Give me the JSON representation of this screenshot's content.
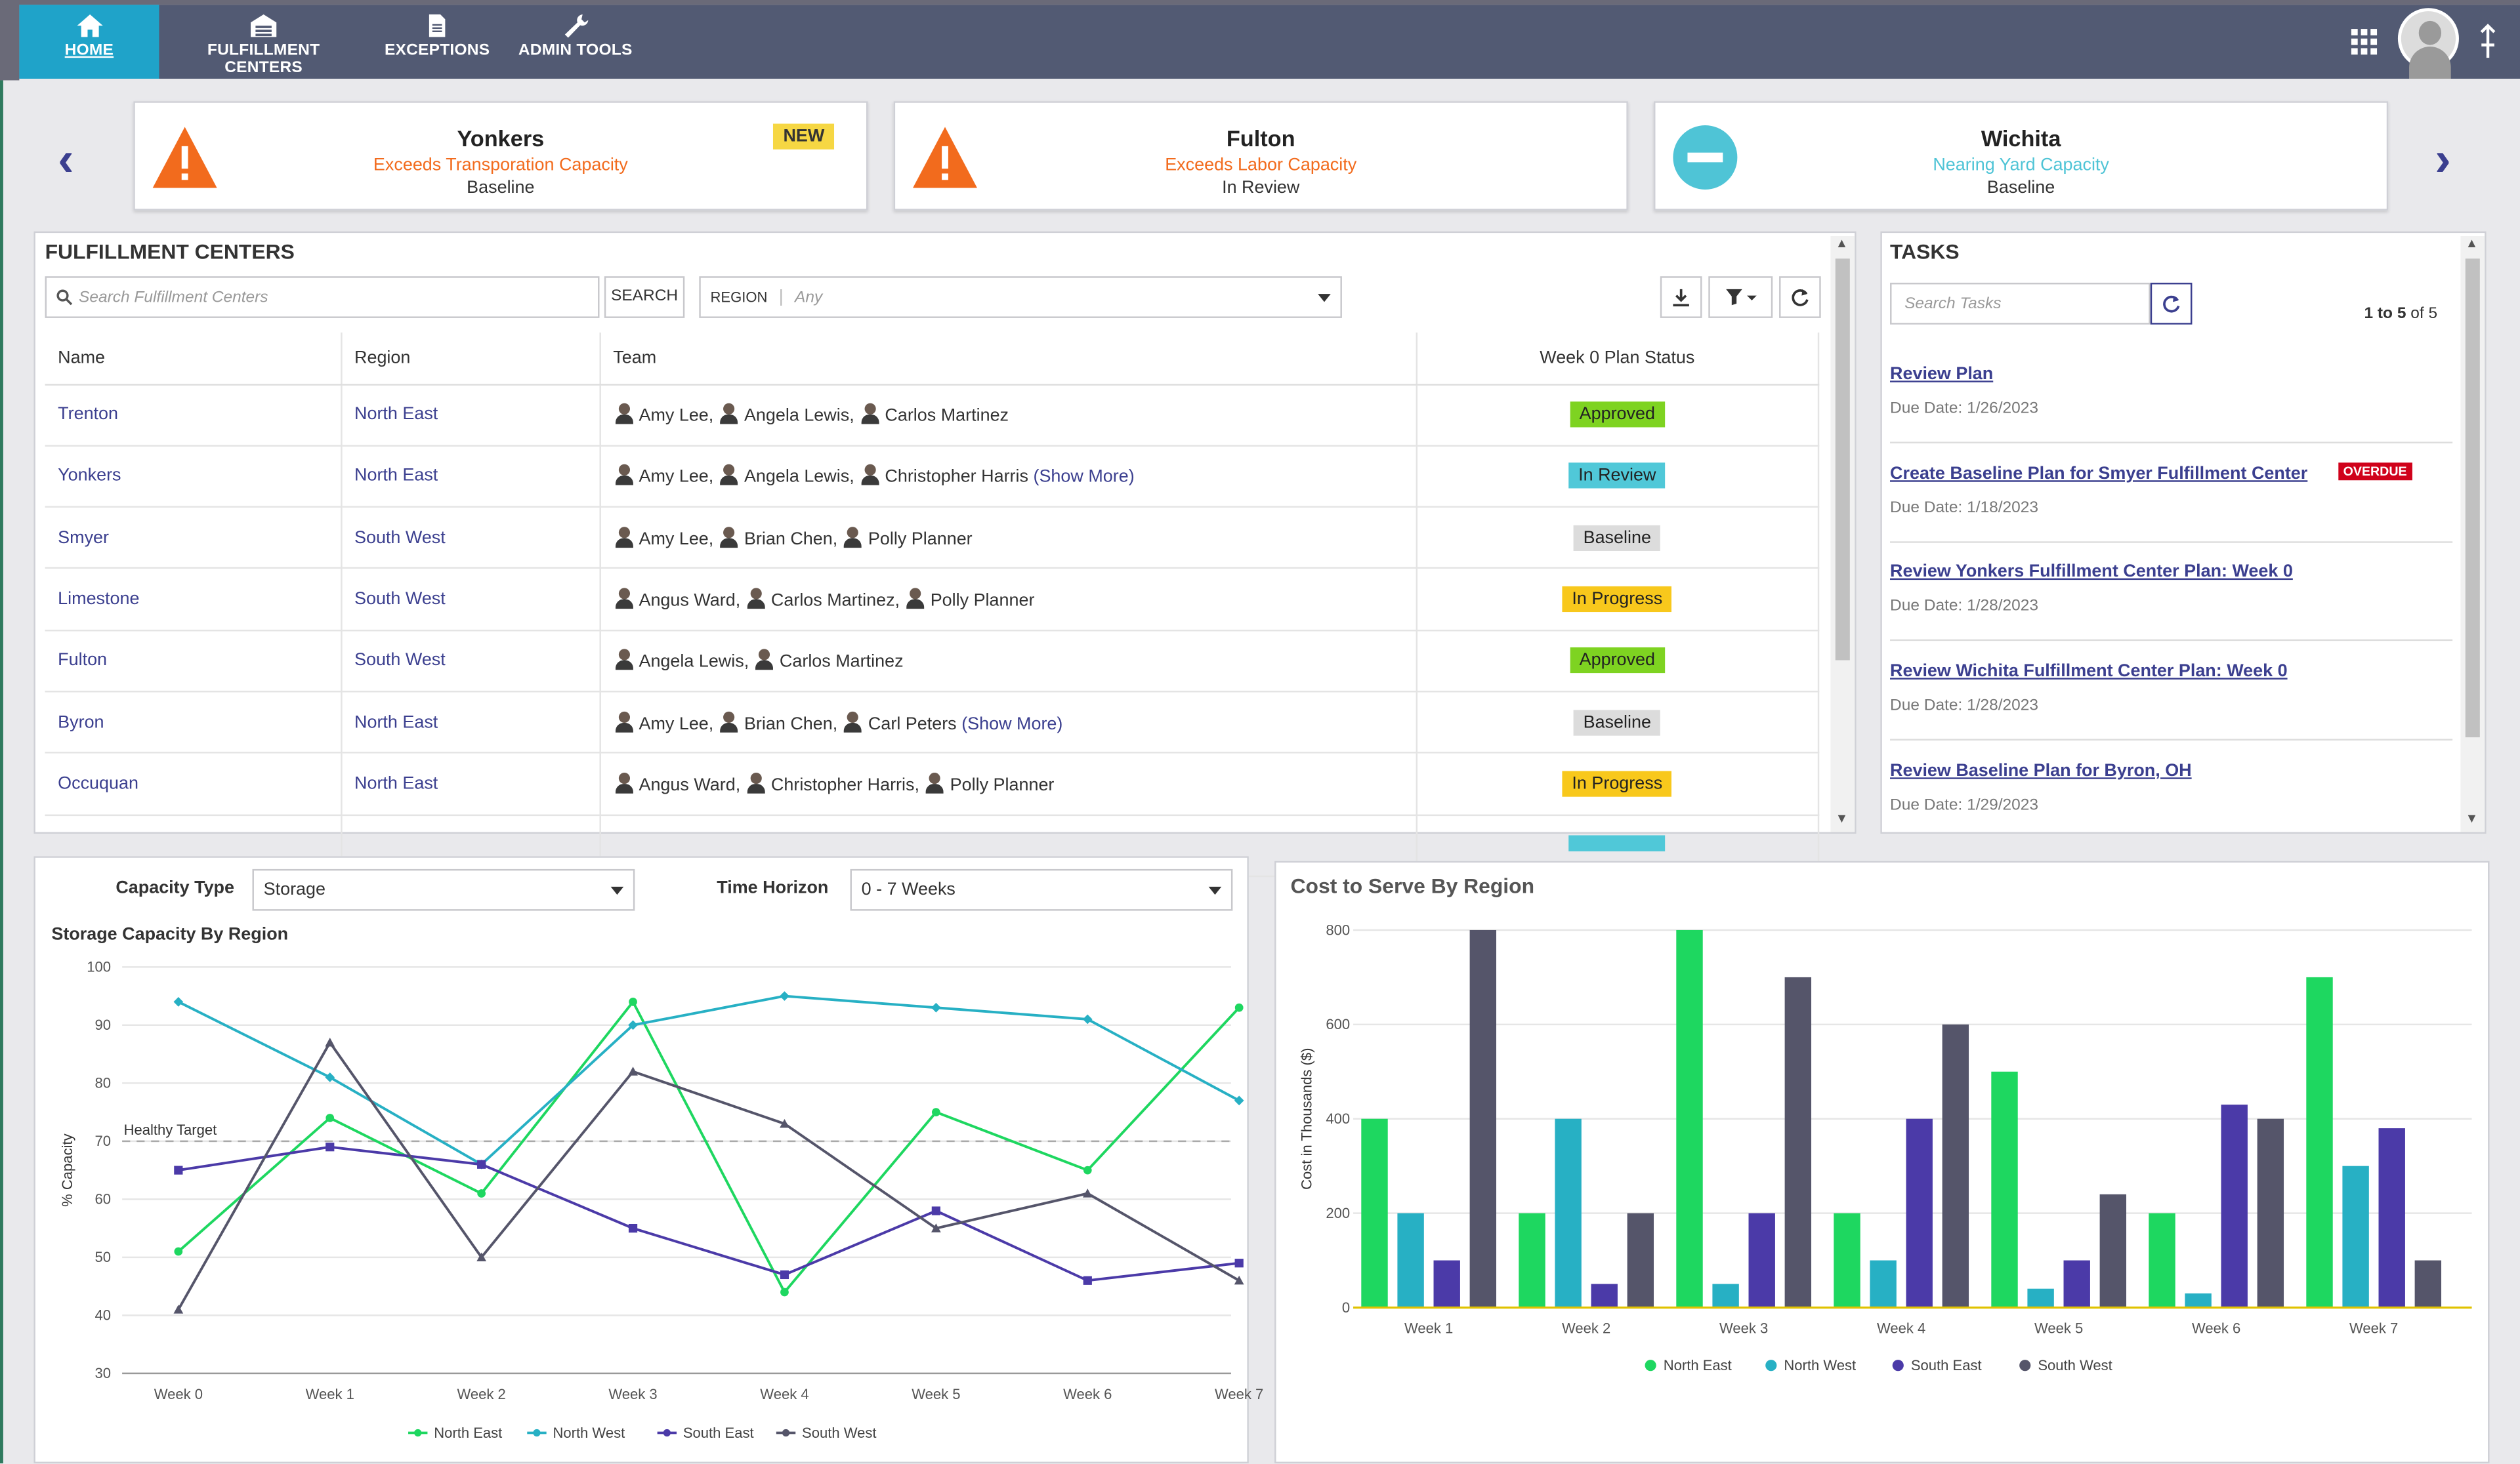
{
  "nav": {
    "items": [
      {
        "label": "HOME",
        "icon": "home-icon",
        "active": true
      },
      {
        "label": "FULFILLMENT CENTERS",
        "icon": "warehouse-icon"
      },
      {
        "label": "EXCEPTIONS",
        "icon": "document-icon"
      },
      {
        "label": "ADMIN TOOLS",
        "icon": "wrench-icon"
      }
    ]
  },
  "alerts": [
    {
      "title": "Yonkers",
      "message": "Exceeds Transporation Capacity",
      "state": "Baseline",
      "badge": "NEW",
      "icon": "warning-icon",
      "color": "#f26b1d"
    },
    {
      "title": "Fulton",
      "message": "Exceeds Labor Capacity",
      "state": "In Review",
      "icon": "warning-icon",
      "color": "#f26b1d"
    },
    {
      "title": "Wichita",
      "message": "Nearing Yard Capacity",
      "state": "Baseline",
      "icon": "minus-circle-icon",
      "color": "#4fc4d6"
    }
  ],
  "fc_panel": {
    "title": "FULFILLMENT CENTERS",
    "search_placeholder": "Search Fulfillment Centers",
    "search_button": "SEARCH",
    "region_label": "REGION",
    "region_value": "Any",
    "columns": [
      "Name",
      "Region",
      "Team",
      "Week 0 Plan Status"
    ],
    "rows": [
      {
        "name": "Trenton",
        "region": "North East",
        "team": [
          "Amy Lee,",
          "Angela Lewis,",
          "Carlos Martinez"
        ],
        "more": "",
        "status": "Approved"
      },
      {
        "name": "Yonkers",
        "region": "North East",
        "team": [
          "Amy Lee,",
          "Angela Lewis,",
          "Christopher Harris"
        ],
        "more": "(Show More)",
        "status": "In Review"
      },
      {
        "name": "Smyer",
        "region": "South West",
        "team": [
          "Amy Lee,",
          "Brian Chen,",
          "Polly Planner"
        ],
        "more": "",
        "status": "Baseline"
      },
      {
        "name": "Limestone",
        "region": "South West",
        "team": [
          "Angus Ward,",
          "Carlos Martinez,",
          "Polly Planner"
        ],
        "more": "",
        "status": "In Progress"
      },
      {
        "name": "Fulton",
        "region": "South West",
        "team": [
          "Angela Lewis,",
          "Carlos Martinez"
        ],
        "more": "",
        "status": "Approved"
      },
      {
        "name": "Byron",
        "region": "North East",
        "team": [
          "Amy Lee,",
          "Brian Chen,",
          "Carl Peters"
        ],
        "more": "(Show More)",
        "status": "Baseline"
      },
      {
        "name": "Occuquan",
        "region": "North East",
        "team": [
          "Angus Ward,",
          "Christopher Harris,",
          "Polly Planner"
        ],
        "more": "",
        "status": "In Progress"
      }
    ],
    "status_colors": {
      "Approved": "#7ed321",
      "In Review": "#50c8d8",
      "Baseline": "#dcdcdc",
      "In Progress": "#f8c81c"
    }
  },
  "tasks": {
    "title": "TASKS",
    "search_placeholder": "Search Tasks",
    "count_prefix": "1 to 5",
    "count_suffix": "of 5",
    "items": [
      {
        "title": "Review Plan",
        "due": "Due Date: 1/26/2023"
      },
      {
        "title": "Create Baseline Plan for Smyer Fulfillment Center",
        "due": "Due Date: 1/18/2023",
        "badge": "OVERDUE"
      },
      {
        "title": "Review Yonkers Fulfillment Center Plan: Week 0",
        "due": "Due Date: 1/28/2023"
      },
      {
        "title": "Review Wichita Fulfillment Center Plan: Week 0",
        "due": "Due Date: 1/28/2023"
      },
      {
        "title": "Review Baseline Plan for Byron, OH",
        "due": "Due Date: 1/29/2023"
      }
    ]
  },
  "capacity": {
    "type_label": "Capacity Type",
    "type_value": "Storage",
    "horizon_label": "Time Horizon",
    "horizon_value": "0 - 7 Weeks"
  },
  "chart_data": [
    {
      "type": "line",
      "title": "Storage Capacity By Region",
      "ylabel": "% Capacity",
      "xlabel": "",
      "ylim": [
        30,
        100
      ],
      "yticks": [
        30,
        40,
        50,
        60,
        70,
        80,
        90,
        100
      ],
      "categories": [
        "Week 0",
        "Week 1",
        "Week 2",
        "Week 3",
        "Week 4",
        "Week 5",
        "Week 6",
        "Week 7"
      ],
      "reference_line": {
        "value": 70,
        "label": "Healthy Target"
      },
      "series": [
        {
          "name": "North East",
          "color": "#1ed760",
          "marker": "circle",
          "values": [
            51,
            74,
            61,
            94,
            44,
            75,
            65,
            93
          ]
        },
        {
          "name": "North West",
          "color": "#27b0c4",
          "marker": "diamond",
          "values": [
            94,
            81,
            66,
            90,
            95,
            93,
            91,
            77
          ]
        },
        {
          "name": "South East",
          "color": "#4b3aa8",
          "marker": "square",
          "values": [
            65,
            69,
            66,
            55,
            47,
            58,
            46,
            49
          ]
        },
        {
          "name": "South West",
          "color": "#55556a",
          "marker": "triangle",
          "values": [
            41,
            87,
            50,
            82,
            73,
            55,
            61,
            46
          ]
        }
      ],
      "legend": "bottom",
      "grid": true
    },
    {
      "type": "bar",
      "title": "Cost to Serve By Region",
      "ylabel": "Cost in Thousands ($)",
      "xlabel": "",
      "ylim": [
        0,
        800
      ],
      "yticks": [
        0,
        200,
        400,
        600,
        800
      ],
      "categories": [
        "Week 1",
        "Week 2",
        "Week 3",
        "Week 4",
        "Week 5",
        "Week 6",
        "Week 7"
      ],
      "series": [
        {
          "name": "North East",
          "color": "#1ed760",
          "values": [
            400,
            200,
            800,
            200,
            500,
            200,
            700
          ]
        },
        {
          "name": "North West",
          "color": "#27b0c4",
          "values": [
            200,
            400,
            50,
            100,
            40,
            30,
            300
          ]
        },
        {
          "name": "South East",
          "color": "#4b3aa8",
          "values": [
            100,
            50,
            200,
            400,
            100,
            430,
            380
          ]
        },
        {
          "name": "South West",
          "color": "#55556a",
          "values": [
            800,
            200,
            700,
            600,
            240,
            400,
            100
          ]
        }
      ],
      "legend": "bottom",
      "grid": true
    }
  ]
}
